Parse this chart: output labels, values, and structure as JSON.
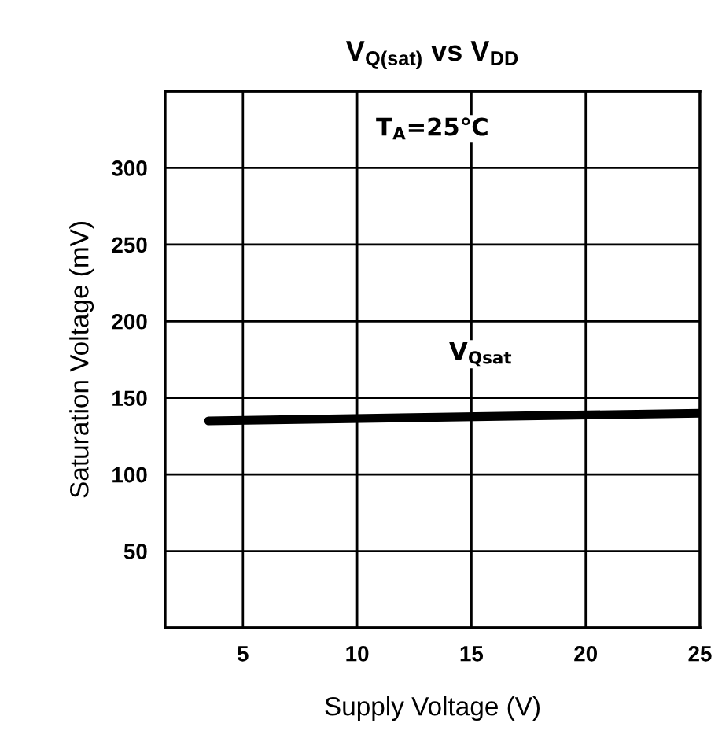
{
  "chart_data": {
    "type": "line",
    "title": "V$_{Q(sat)}$ vs V$_{DD}$",
    "xlabel": "Supply Voltage (V)",
    "ylabel": "Saturation Voltage (mV)",
    "annotations": [
      "T$_{A}$=25℃",
      "V$_{Qsat}$"
    ],
    "series": [
      {
        "color": "#000000",
        "x": [
          3.5,
          25
        ],
        "values": [
          135,
          140
        ]
      }
    ],
    "xlim": [
      1.6,
      25
    ],
    "ylim": [
      0,
      350
    ],
    "xticks": [
      5,
      10,
      15,
      20,
      25
    ],
    "yticks": [
      {
        "value": 0,
        "label": null
      },
      50,
      100,
      150,
      200,
      250,
      300,
      {
        "value": 350,
        "label": null
      }
    ],
    "grid": true,
    "legend": false,
    "line_style": "solid",
    "marker": "none"
  }
}
